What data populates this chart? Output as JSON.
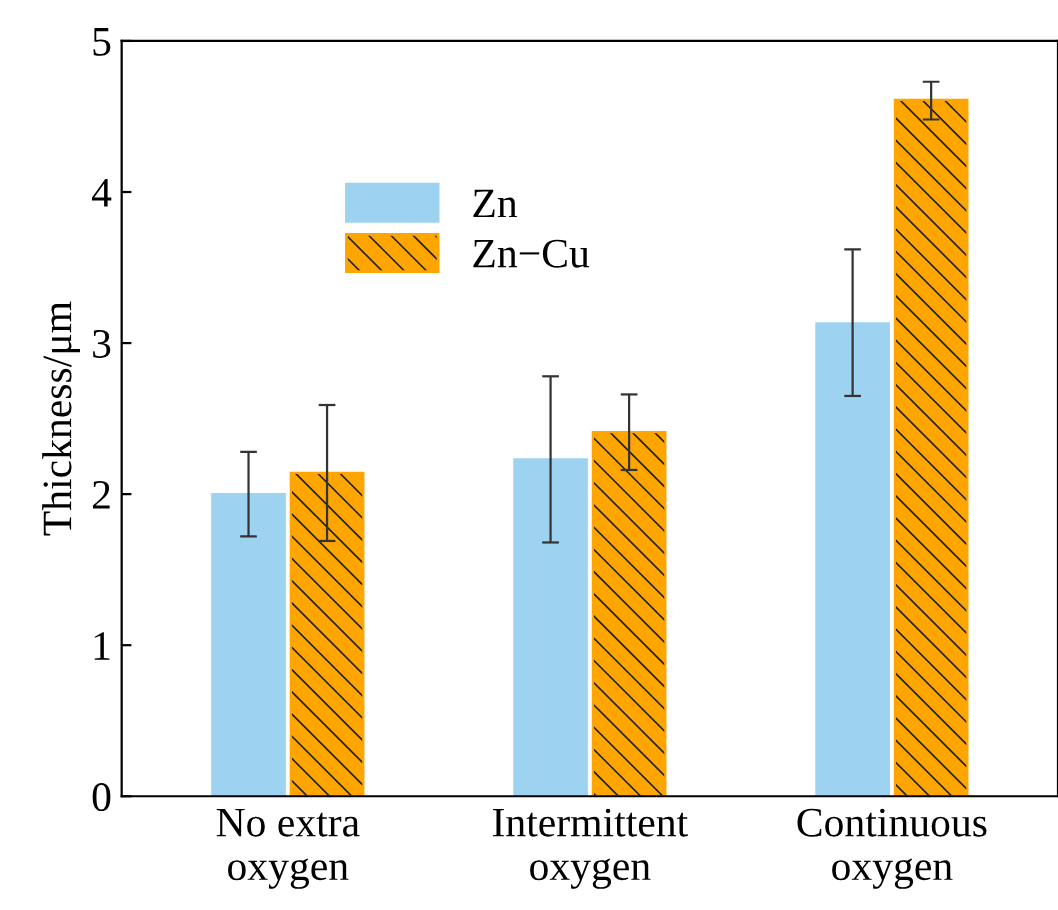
{
  "chart_data": {
    "type": "bar",
    "ylabel": "Thickness/μm",
    "categories": [
      "No extra\noxygen",
      "Intermittent\noxygen",
      "Continuous\noxygen"
    ],
    "ylim": [
      0,
      5
    ],
    "yticks": [
      0,
      1,
      2,
      3,
      4,
      5
    ],
    "grid": false,
    "legend": "top left",
    "series": [
      {
        "name": "Zn",
        "color": "#9dd3f0",
        "values": [
          2.0,
          2.23,
          3.13
        ],
        "errors": [
          0.28,
          [
            1.68,
            2.78
          ],
          [
            2.65,
            3.62
          ]
        ]
      },
      {
        "name": "Zn−Cu",
        "color": "#ffa500",
        "values": [
          2.14,
          2.41,
          4.61
        ],
        "errors": [
          [
            1.69,
            2.59
          ],
          0.25,
          [
            4.48,
            4.73
          ]
        ]
      }
    ]
  }
}
